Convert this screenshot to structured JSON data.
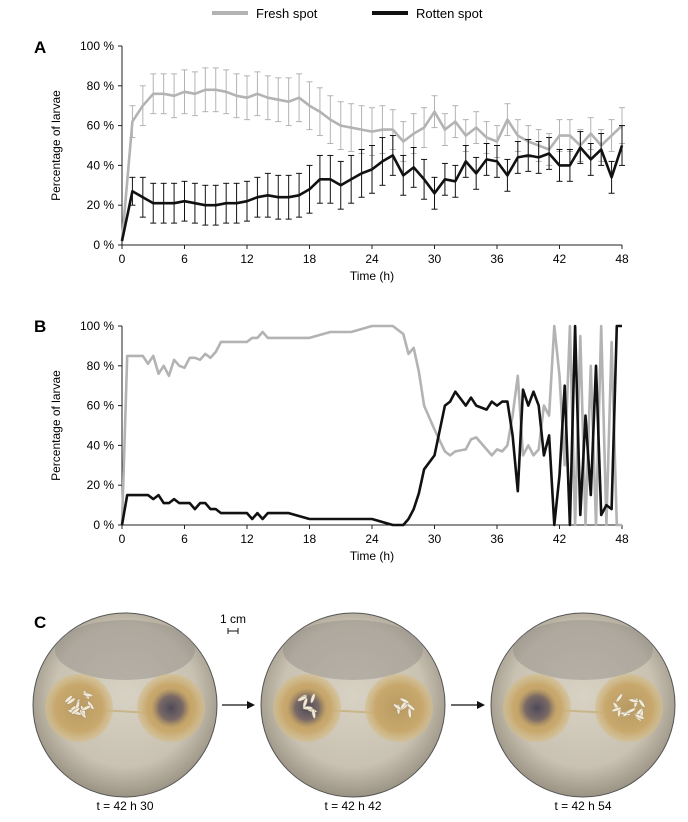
{
  "legend": {
    "position": "top-center",
    "items": [
      {
        "name": "Fresh spot",
        "color": "#b3b3b3"
      },
      {
        "name": "Rotten spot",
        "color": "#111111"
      }
    ]
  },
  "chart_data": [
    {
      "panel": "A",
      "type": "line",
      "xlabel": "Time (h)",
      "ylabel": "Percentage of larvae",
      "xlim": [
        0,
        48
      ],
      "ylim": [
        0,
        100
      ],
      "xticks": [
        0,
        6,
        12,
        18,
        24,
        30,
        36,
        42,
        48
      ],
      "yticks": [
        0,
        20,
        40,
        60,
        80,
        100
      ],
      "ytick_labels": [
        "0 %",
        "20 %",
        "40 %",
        "60 %",
        "80 %",
        "100 %"
      ],
      "error_bars": true,
      "series": [
        {
          "name": "Fresh spot",
          "color": "#b3b3b3",
          "x": [
            0,
            1,
            2,
            3,
            4,
            5,
            6,
            7,
            8,
            9,
            10,
            11,
            12,
            13,
            14,
            15,
            16,
            17,
            18,
            19,
            20,
            21,
            22,
            23,
            24,
            25,
            26,
            27,
            28,
            29,
            30,
            31,
            32,
            33,
            34,
            35,
            36,
            37,
            38,
            39,
            40,
            41,
            42,
            43,
            44,
            45,
            46,
            47,
            48
          ],
          "y": [
            2,
            62,
            70,
            76,
            76,
            75,
            77,
            76,
            78,
            78,
            77,
            75,
            74,
            76,
            74,
            73,
            72,
            74,
            70,
            67,
            63,
            60,
            59,
            58,
            57,
            58,
            58,
            52,
            56,
            59,
            67,
            58,
            62,
            55,
            59,
            54,
            52,
            63,
            55,
            52,
            50,
            48,
            55,
            55,
            50,
            56,
            50,
            55,
            60
          ],
          "err": [
            0,
            8,
            10,
            10,
            10,
            11,
            11,
            11,
            11,
            11,
            11,
            11,
            11,
            11,
            11,
            11,
            12,
            12,
            12,
            12,
            12,
            12,
            12,
            12,
            12,
            12,
            10,
            10,
            10,
            10,
            8,
            8,
            8,
            8,
            8,
            8,
            8,
            8,
            8,
            8,
            8,
            8,
            8,
            8,
            8,
            8,
            8,
            8,
            9
          ]
        },
        {
          "name": "Rotten spot",
          "color": "#111111",
          "x": [
            0,
            1,
            2,
            3,
            4,
            5,
            6,
            7,
            8,
            9,
            10,
            11,
            12,
            13,
            14,
            15,
            16,
            17,
            18,
            19,
            20,
            21,
            22,
            23,
            24,
            25,
            26,
            27,
            28,
            29,
            30,
            31,
            32,
            33,
            34,
            35,
            36,
            37,
            38,
            39,
            40,
            41,
            42,
            43,
            44,
            45,
            46,
            47,
            48
          ],
          "y": [
            2,
            27,
            24,
            21,
            21,
            21,
            22,
            21,
            20,
            20,
            21,
            21,
            22,
            24,
            25,
            24,
            24,
            25,
            28,
            33,
            33,
            30,
            33,
            36,
            38,
            42,
            45,
            35,
            39,
            33,
            26,
            33,
            32,
            42,
            36,
            43,
            42,
            35,
            44,
            45,
            44,
            46,
            40,
            40,
            49,
            43,
            48,
            34,
            50
          ],
          "err": [
            0,
            7,
            10,
            10,
            10,
            10,
            10,
            10,
            10,
            10,
            10,
            10,
            10,
            10,
            11,
            11,
            11,
            11,
            12,
            12,
            12,
            12,
            12,
            12,
            12,
            12,
            10,
            10,
            10,
            10,
            8,
            8,
            8,
            8,
            8,
            8,
            8,
            8,
            8,
            8,
            8,
            8,
            8,
            8,
            8,
            8,
            8,
            8,
            10
          ]
        }
      ]
    },
    {
      "panel": "B",
      "type": "line",
      "xlabel": "Time (h)",
      "ylabel": "Percentage of larvae",
      "xlim": [
        0,
        48
      ],
      "ylim": [
        0,
        100
      ],
      "xticks": [
        0,
        6,
        12,
        18,
        24,
        30,
        36,
        42,
        48
      ],
      "yticks": [
        0,
        20,
        40,
        60,
        80,
        100
      ],
      "ytick_labels": [
        "0 %",
        "20 %",
        "40 %",
        "60 %",
        "80 %",
        "100 %"
      ],
      "series": [
        {
          "name": "Fresh spot",
          "color": "#b3b3b3",
          "x": [
            0,
            0.5,
            2,
            2.5,
            3,
            3.5,
            4,
            4.5,
            5,
            5.5,
            6,
            6.5,
            7,
            7.5,
            8,
            8.5,
            9,
            9.5,
            10,
            12,
            12.5,
            13,
            13.5,
            14,
            16,
            18,
            20,
            22,
            24,
            26,
            27,
            27.5,
            28,
            28.5,
            29,
            30,
            31,
            31.5,
            32,
            33,
            33.5,
            34,
            35,
            35.5,
            36,
            36.5,
            37,
            37.5,
            38,
            38.5,
            39,
            39.5,
            40,
            40.5,
            41,
            41.5,
            42,
            42.5,
            43,
            43.5,
            44,
            44.5,
            45,
            45.5,
            46,
            46.5,
            47,
            47.5,
            48
          ],
          "y": [
            0,
            85,
            85,
            81,
            85,
            76,
            80,
            75,
            83,
            80,
            79,
            84,
            84,
            83,
            86,
            84,
            87,
            92,
            92,
            92,
            94,
            94,
            97,
            94,
            94,
            94,
            97,
            97,
            100,
            100,
            96,
            86,
            89,
            77,
            60,
            48,
            37,
            35,
            37,
            38,
            43,
            44,
            38,
            35,
            38,
            37,
            40,
            55,
            75,
            35,
            40,
            35,
            38,
            60,
            55,
            100,
            75,
            30,
            100,
            0,
            95,
            0,
            80,
            0,
            100,
            0,
            92,
            0,
            0
          ]
        },
        {
          "name": "Rotten spot",
          "color": "#111111",
          "x": [
            0,
            0.5,
            2,
            2.5,
            3,
            3.5,
            4,
            4.5,
            5,
            5.5,
            6,
            6.5,
            7,
            7.5,
            8,
            8.5,
            9,
            9.5,
            10,
            12,
            12.5,
            13,
            13.5,
            14,
            16,
            18,
            20,
            22,
            24,
            26,
            27,
            27.5,
            28,
            28.5,
            29,
            30,
            31,
            31.5,
            32,
            33,
            33.5,
            34,
            35,
            35.5,
            36,
            36.5,
            37,
            37.5,
            38,
            38.5,
            39,
            39.5,
            40,
            40.5,
            41,
            41.5,
            42,
            42.5,
            43,
            43.5,
            44,
            44.5,
            45,
            45.5,
            46,
            46.5,
            47,
            47.5,
            48
          ],
          "y": [
            0,
            15,
            15,
            15,
            13,
            15,
            11,
            11,
            13,
            11,
            11,
            11,
            8,
            11,
            11,
            8,
            8,
            6,
            6,
            6,
            3,
            6,
            3,
            6,
            6,
            3,
            3,
            3,
            3,
            0,
            0,
            3,
            8,
            16,
            28,
            35,
            60,
            62,
            67,
            60,
            64,
            60,
            58,
            62,
            60,
            62,
            62,
            45,
            17,
            68,
            60,
            67,
            60,
            35,
            45,
            0,
            25,
            70,
            0,
            100,
            5,
            55,
            15,
            80,
            5,
            10,
            8,
            100,
            100
          ]
        }
      ]
    }
  ],
  "panel_c": {
    "label": "C",
    "scale_bar": "1 cm",
    "photos": [
      {
        "caption": "t = 42 h 30",
        "larvae_side": "left"
      },
      {
        "caption": "t = 42 h 42",
        "larvae_side": "both"
      },
      {
        "caption": "t = 42 h 54",
        "larvae_side": "right"
      }
    ],
    "arrow_icon": "right-arrow-icon"
  }
}
